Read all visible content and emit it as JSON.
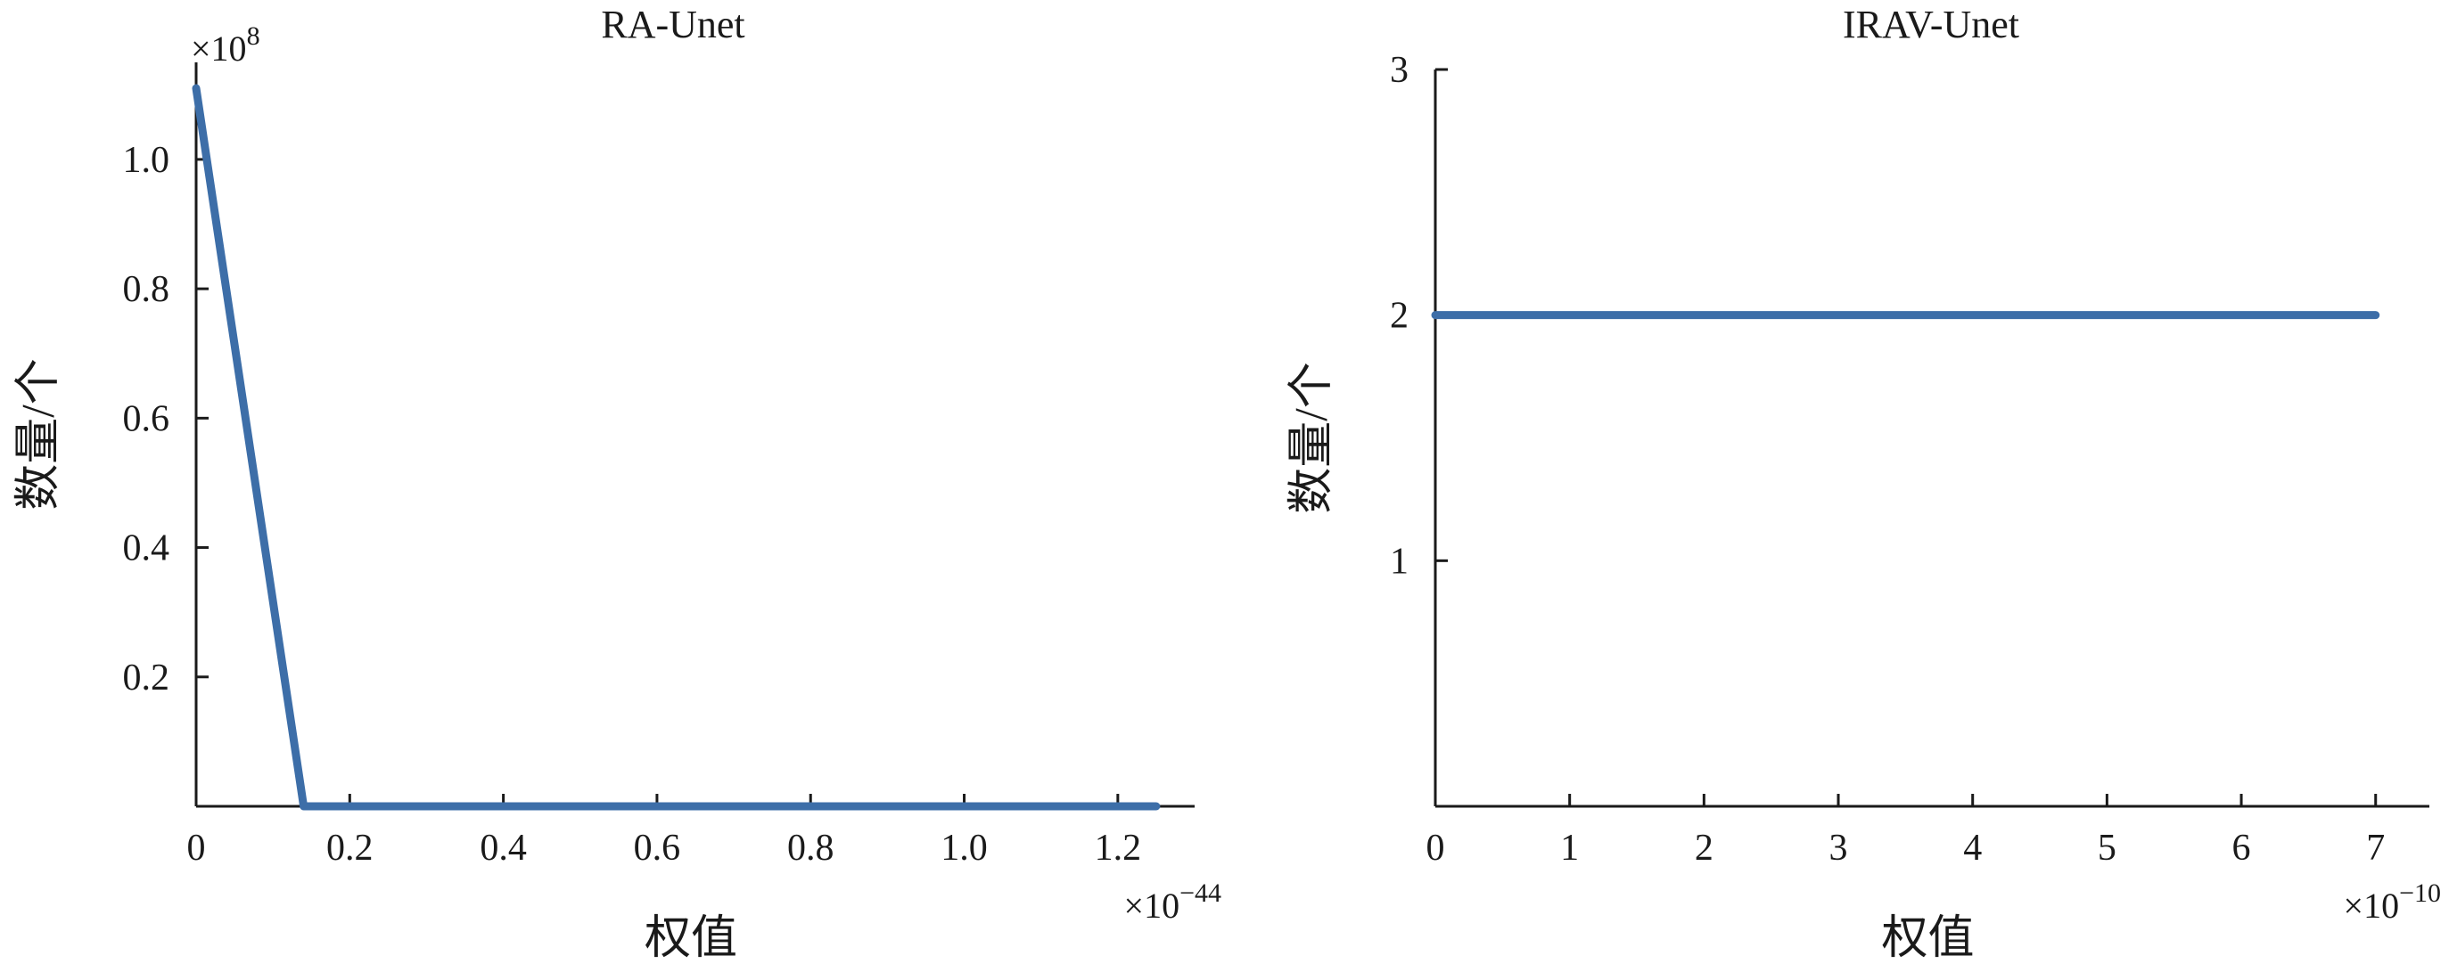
{
  "chart_data": [
    {
      "type": "line",
      "title": "RA-Unet",
      "xlabel": "权值",
      "ylabel": "数量/个",
      "x_multiplier": "×10",
      "x_exponent": "−44",
      "y_multiplier": "×10",
      "y_exponent": "8",
      "xlim": [
        0,
        1.3
      ],
      "ylim": [
        0,
        1.15
      ],
      "xticks": [
        0,
        0.2,
        0.4,
        0.6,
        0.8,
        1.0,
        1.2
      ],
      "xtick_labels": [
        "0",
        "0.2",
        "0.4",
        "0.6",
        "0.8",
        "1.0",
        "1.2"
      ],
      "yticks": [
        0.2,
        0.4,
        0.6,
        0.8,
        1.0
      ],
      "ytick_labels": [
        "0.2",
        "0.4",
        "0.6",
        "0.8",
        "1.0"
      ],
      "line_color": "#3d6ea8",
      "series": [
        {
          "x": [
            0,
            0.14,
            1.25
          ],
          "y": [
            1.11,
            0,
            0
          ]
        }
      ]
    },
    {
      "type": "line",
      "title": "IRAV-Unet",
      "xlabel": "权值",
      "ylabel": "数量/个",
      "x_multiplier": "×10",
      "x_exponent": "−10",
      "y_multiplier": "",
      "y_exponent": "",
      "xlim": [
        0,
        7.4
      ],
      "ylim": [
        0,
        3
      ],
      "xticks": [
        0,
        1,
        2,
        3,
        4,
        5,
        6,
        7
      ],
      "xtick_labels": [
        "0",
        "1",
        "2",
        "3",
        "4",
        "5",
        "6",
        "7"
      ],
      "yticks": [
        1,
        2,
        3
      ],
      "ytick_labels": [
        "1",
        "2",
        "3"
      ],
      "line_color": "#3d6ea8",
      "series": [
        {
          "x": [
            0,
            7
          ],
          "y": [
            2,
            2
          ]
        }
      ]
    }
  ]
}
